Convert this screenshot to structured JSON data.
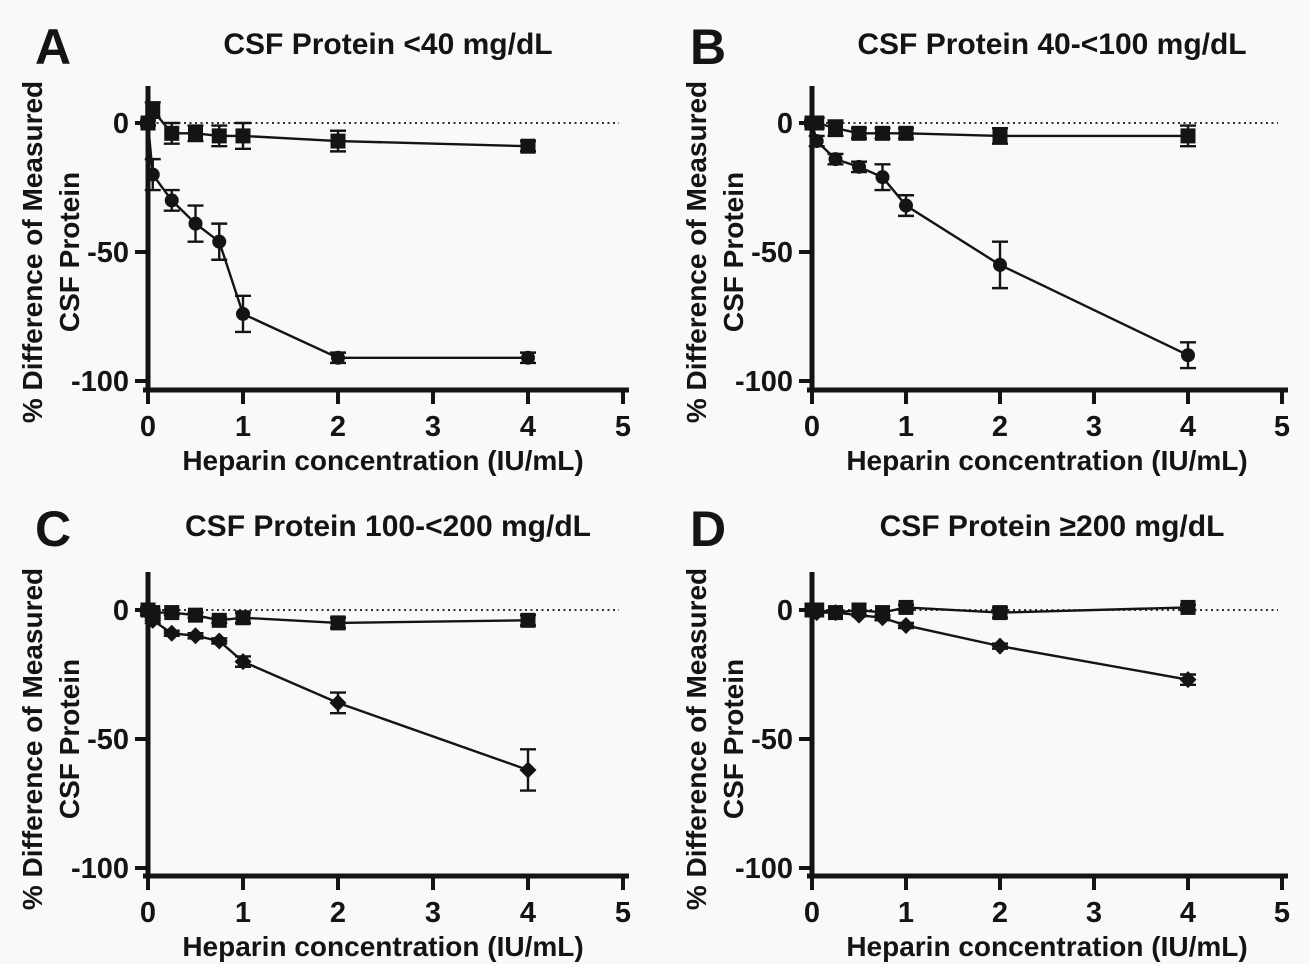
{
  "figure": {
    "background": "#faf8f8",
    "ink": "#141414"
  },
  "chart_data": [
    {
      "panel_letter": "A",
      "title": "CSF Protein <40 mg/dL",
      "type": "line",
      "xlabel": "Heparin concentration (IU/mL)",
      "ylabel_line1": "% Difference of Measured",
      "ylabel_line2": "CSF Protein",
      "xlim": [
        0,
        5
      ],
      "ylim": [
        -100,
        15
      ],
      "x_ticks": [
        "0",
        "1",
        "2",
        "3",
        "4",
        "5"
      ],
      "y_ticks": [
        "0",
        "-50",
        "-100"
      ],
      "zero_line": "dotted",
      "legend": "none",
      "series": [
        {
          "name": "square-series",
          "marker": "square",
          "x": [
            0,
            0.05,
            0.25,
            0.5,
            0.75,
            1,
            2,
            4
          ],
          "y": [
            0,
            5,
            -4,
            -4,
            -5,
            -5,
            -7,
            -9
          ],
          "err": [
            1,
            3,
            4,
            3,
            4,
            5,
            4,
            2
          ]
        },
        {
          "name": "circle-series",
          "marker": "circle",
          "x": [
            0,
            0.05,
            0.25,
            0.5,
            0.75,
            1,
            2,
            4
          ],
          "y": [
            0,
            -20,
            -30,
            -39,
            -46,
            -74,
            -91,
            -91
          ],
          "err": [
            1,
            6,
            4,
            7,
            7,
            7,
            2,
            2
          ]
        }
      ]
    },
    {
      "panel_letter": "B",
      "title": "CSF Protein 40-<100 mg/dL",
      "type": "line",
      "xlabel": "Heparin concentration (IU/mL)",
      "ylabel_line1": "% Difference of Measured",
      "ylabel_line2": "CSF Protein",
      "xlim": [
        0,
        5
      ],
      "ylim": [
        -100,
        15
      ],
      "x_ticks": [
        "0",
        "1",
        "2",
        "3",
        "4",
        "5"
      ],
      "y_ticks": [
        "0",
        "-50",
        "-100"
      ],
      "zero_line": "dotted",
      "legend": "none",
      "series": [
        {
          "name": "square-series",
          "marker": "square",
          "x": [
            0,
            0.05,
            0.25,
            0.5,
            0.75,
            1,
            2,
            4
          ],
          "y": [
            0,
            0,
            -2,
            -4,
            -4,
            -4,
            -5,
            -5
          ],
          "err": [
            1,
            2,
            3,
            2,
            2,
            2,
            3,
            4
          ]
        },
        {
          "name": "circle-series",
          "marker": "circle",
          "x": [
            0,
            0.05,
            0.25,
            0.5,
            0.75,
            1,
            2,
            4
          ],
          "y": [
            0,
            -7,
            -14,
            -17,
            -21,
            -32,
            -55,
            -90
          ],
          "err": [
            1,
            2,
            2,
            2,
            5,
            4,
            9,
            5
          ]
        }
      ]
    },
    {
      "panel_letter": "C",
      "title": "CSF Protein 100-<200 mg/dL",
      "type": "line",
      "xlabel": "Heparin concentration (IU/mL)",
      "ylabel_line1": "% Difference of Measured",
      "ylabel_line2": "CSF Protein",
      "xlim": [
        0,
        5
      ],
      "ylim": [
        -100,
        15
      ],
      "x_ticks": [
        "0",
        "1",
        "2",
        "3",
        "4",
        "5"
      ],
      "y_ticks": [
        "0",
        "-50",
        "-100"
      ],
      "zero_line": "dotted",
      "legend": "none",
      "series": [
        {
          "name": "square-series",
          "marker": "square",
          "x": [
            0,
            0.05,
            0.25,
            0.5,
            0.75,
            1,
            2,
            4
          ],
          "y": [
            0,
            -1,
            -1,
            -2,
            -4,
            -3,
            -5,
            -4
          ],
          "err": [
            1,
            1,
            1,
            1,
            1,
            2,
            2,
            2
          ]
        },
        {
          "name": "circle-series",
          "marker": "diamond",
          "x": [
            0,
            0.05,
            0.25,
            0.5,
            0.75,
            1,
            2,
            4
          ],
          "y": [
            -1,
            -4,
            -9,
            -10,
            -12,
            -20,
            -36,
            -62
          ],
          "err": [
            1,
            1,
            1,
            1,
            1,
            2,
            4,
            8
          ]
        }
      ]
    },
    {
      "panel_letter": "D",
      "title": "CSF Protein ≥200 mg/dL",
      "type": "line",
      "xlabel": "Heparin concentration (IU/mL)",
      "ylabel_line1": "% Difference of Measured",
      "ylabel_line2": "CSF Protein",
      "xlim": [
        0,
        5
      ],
      "ylim": [
        -100,
        15
      ],
      "x_ticks": [
        "0",
        "1",
        "2",
        "3",
        "4",
        "5"
      ],
      "y_ticks": [
        "0",
        "-50",
        "-100"
      ],
      "zero_line": "dotted",
      "legend": "none",
      "series": [
        {
          "name": "square-series",
          "marker": "square",
          "x": [
            0,
            0.05,
            0.25,
            0.5,
            0.75,
            1,
            2,
            4
          ],
          "y": [
            0,
            0,
            -1,
            0,
            -1,
            1,
            -1,
            1
          ],
          "err": [
            0,
            0,
            0,
            0,
            0,
            1,
            2,
            1
          ]
        },
        {
          "name": "circle-series",
          "marker": "diamond",
          "x": [
            0,
            0.05,
            0.25,
            0.5,
            0.75,
            1,
            2,
            4
          ],
          "y": [
            0,
            -1,
            -1,
            -2,
            -3,
            -6,
            -14,
            -27
          ],
          "err": [
            0,
            0,
            0,
            0,
            1,
            1,
            1,
            2
          ]
        }
      ]
    }
  ]
}
